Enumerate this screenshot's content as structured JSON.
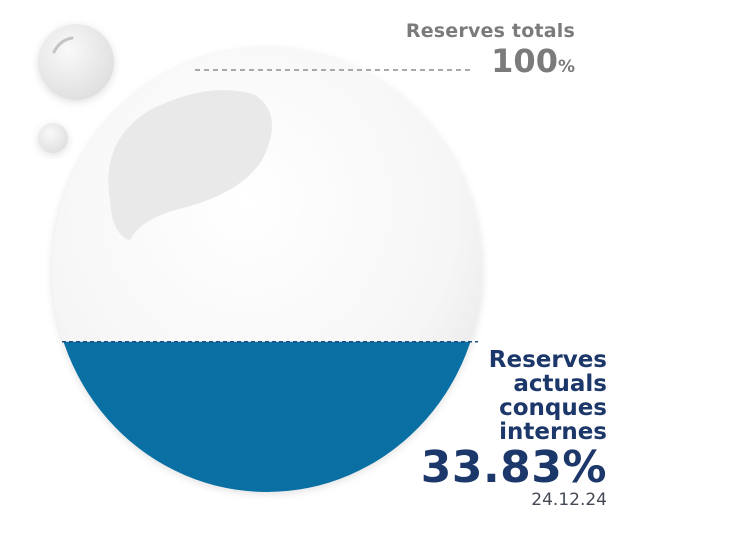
{
  "chart_data": {
    "type": "area",
    "labels": {
      "total_label": "Reserves totals",
      "total_value": "100",
      "total_unit": "%",
      "current_label": "Reserves actuals conques internes",
      "current_value": "33.83%",
      "date": "24.12.24"
    },
    "values": {
      "total": 100,
      "current": 33.83
    },
    "colors": {
      "fill": "#0a70a3",
      "label_gray": "#7b7b7b",
      "label_navy": "#1c3769",
      "drop": "#f7f7f7"
    }
  }
}
